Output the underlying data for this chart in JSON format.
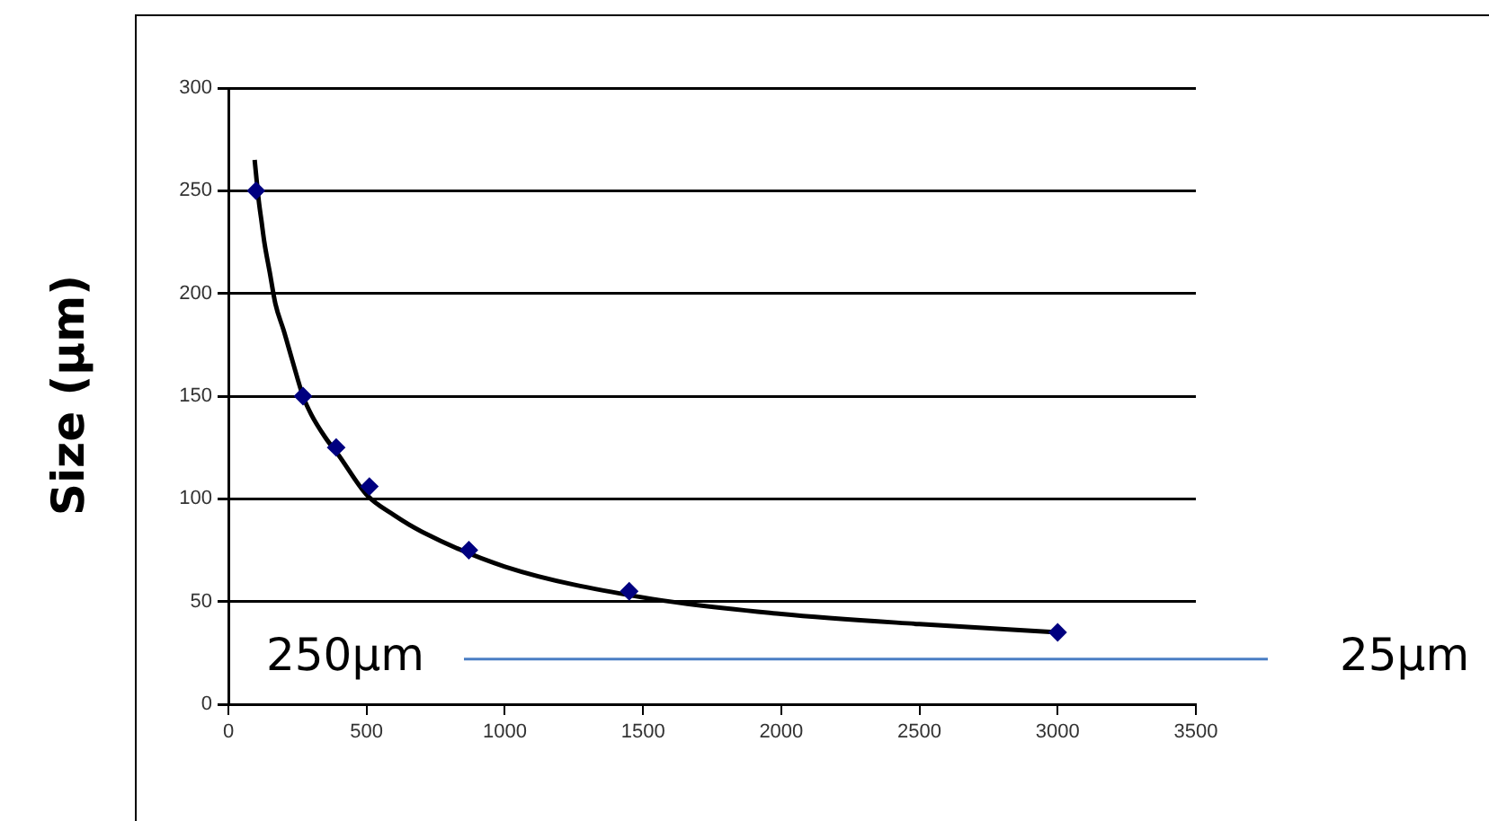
{
  "chart_data": {
    "type": "scatter",
    "ylabel": "Size (µm)",
    "series": [
      {
        "type": "scatter",
        "color": "#000080",
        "marker": "diamond",
        "x": [
          100,
          270,
          390,
          510,
          870,
          1450,
          3000
        ],
        "values": [
          250,
          150,
          125,
          106,
          75,
          55,
          35
        ]
      },
      {
        "type": "line",
        "color": "#000000",
        "marker": "none",
        "line_style": "solid",
        "x": [
          95,
          110,
          120,
          130,
          150,
          170,
          200,
          230,
          270,
          300,
          350,
          400,
          500,
          600,
          700,
          1000,
          1500,
          2000,
          2500,
          3000
        ],
        "values": [
          265,
          245,
          235,
          225,
          210,
          195,
          182,
          168,
          150,
          141,
          130,
          121,
          102,
          92,
          84,
          67,
          52,
          44,
          39,
          35
        ]
      }
    ],
    "ref_lines": [
      {
        "axis": "y",
        "value": 22,
        "color": "#4a7ec4"
      }
    ],
    "xlim": [
      0,
      3500
    ],
    "xticks": [
      0,
      500,
      1000,
      1500,
      2000,
      2500,
      3000,
      3500
    ],
    "ylim": [
      0,
      300
    ],
    "yticks": [
      0,
      50,
      100,
      150,
      200,
      250,
      300
    ],
    "grid": "y",
    "legend": false,
    "annotations": [
      "250µm",
      "25µm"
    ]
  }
}
